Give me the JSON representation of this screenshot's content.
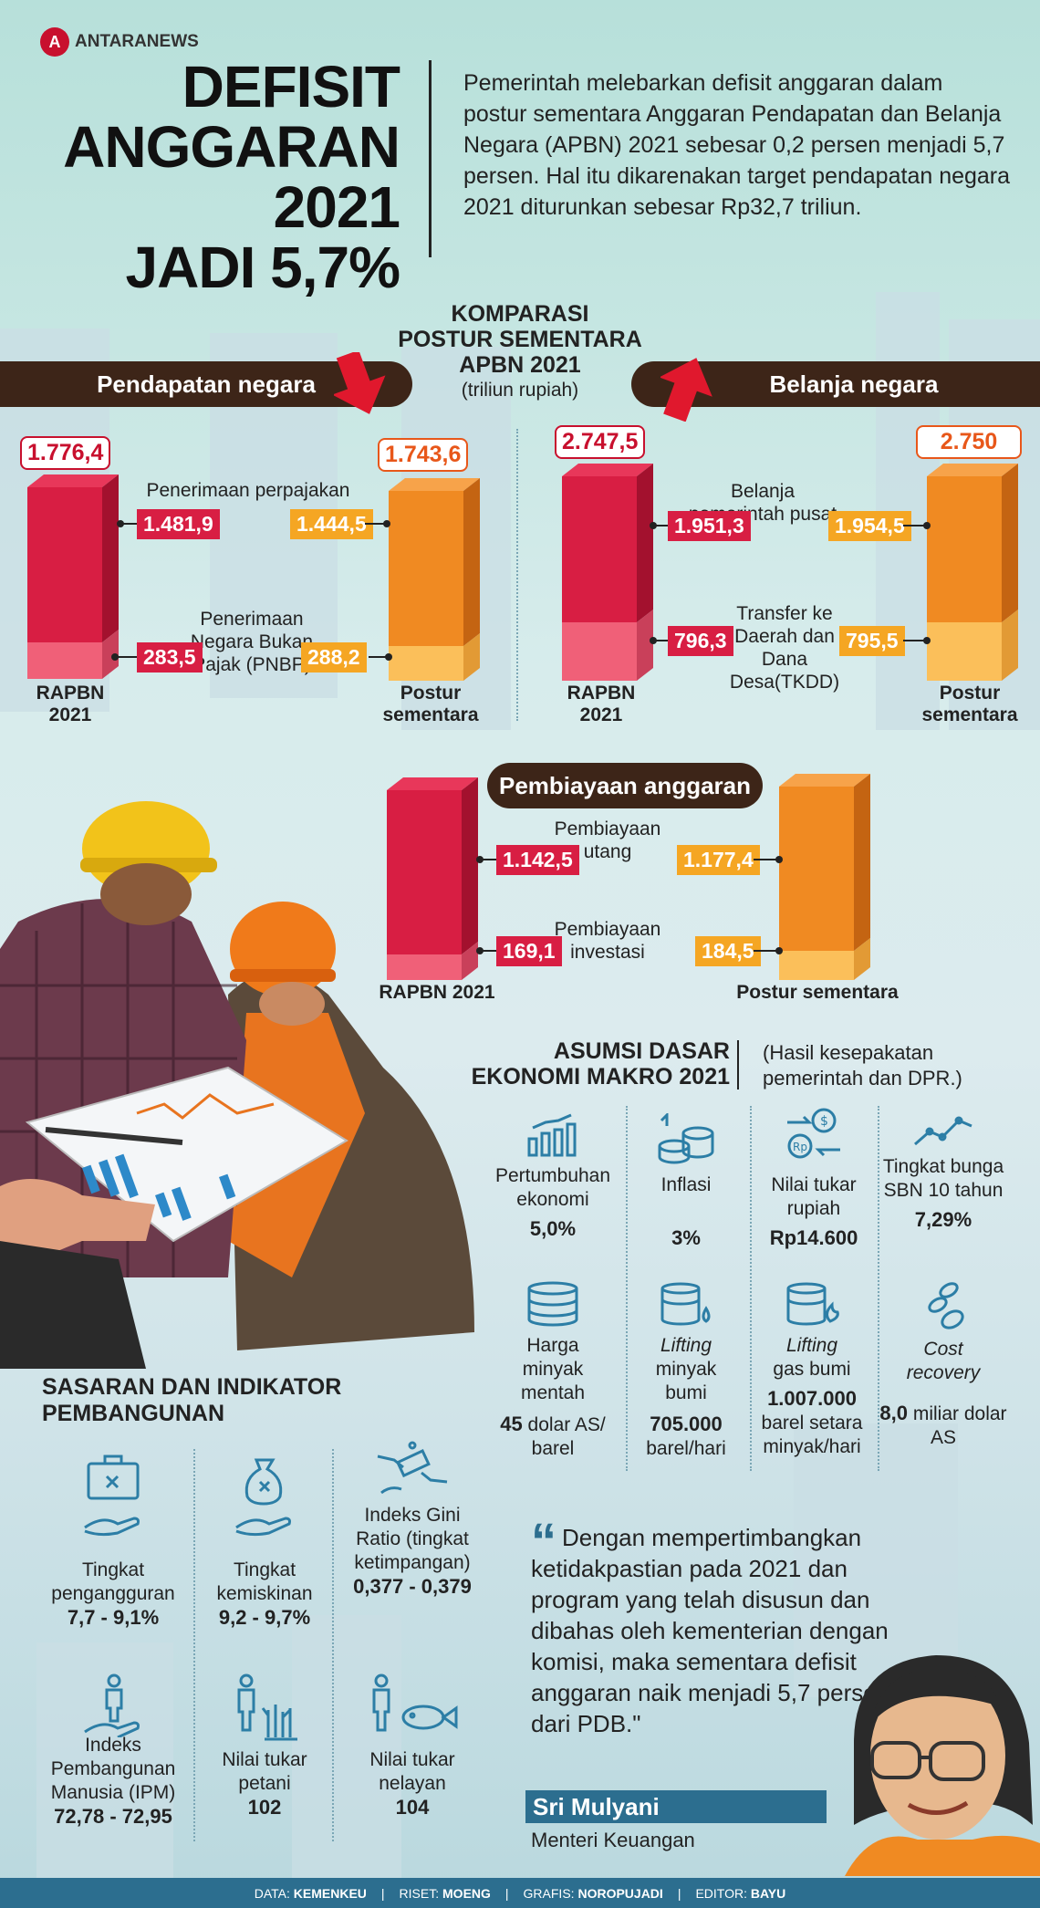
{
  "brand": {
    "logo_text": "ANTARANEWS",
    "logo_mark": "A"
  },
  "title": {
    "line1": "DEFISIT",
    "line2": "ANGGARAN 2021",
    "line3": "JADI 5,7%"
  },
  "intro": "Pemerintah melebarkan defisit anggaran dalam postur sementara Anggaran Pendapatan dan Belanja Negara (APBN) 2021 sebesar 0,2 persen menjadi 5,7 persen. Hal itu dikarenakan target pendapatan negara 2021 diturunkan sebesar Rp32,7 triliun.",
  "comparison": {
    "title_l1": "KOMPARASI",
    "title_l2": "POSTUR SEMENTARA",
    "title_l3": "APBN 2021",
    "unit": "(triliun rupiah)"
  },
  "pendapatan": {
    "header": "Pendapatan negara",
    "rapbn_total": "1.776,4",
    "postur_total": "1.743,6",
    "pajak_label": "Penerimaan perpajakan",
    "pajak_rapbn": "1.481,9",
    "pajak_postur": "1.444,5",
    "pnbp_label": "Penerimaan Negara Bukan Pajak (PNBP)",
    "pnbp_rapbn": "283,5",
    "pnbp_postur": "288,2",
    "cap_left": "RAPBN 2021",
    "cap_right": "Postur sementara"
  },
  "belanja": {
    "header": "Belanja negara",
    "rapbn_total": "2.747,5",
    "postur_total": "2.750",
    "pusat_label": "Belanja pemerintah pusat",
    "pusat_rapbn": "1.951,3",
    "pusat_postur": "1.954,5",
    "tkdd_label": "Transfer ke Daerah dan Dana Desa(TKDD)",
    "tkdd_rapbn": "796,3",
    "tkdd_postur": "795,5",
    "cap_left": "RAPBN 2021",
    "cap_right": "Postur sementara"
  },
  "pembiayaan": {
    "header": "Pembiayaan anggaran",
    "utang_label": "Pembiayaan utang",
    "utang_rapbn": "1.142,5",
    "utang_postur": "1.177,4",
    "investasi_label": "Pembiayaan investasi",
    "investasi_rapbn": "169,1",
    "investasi_postur": "184,5",
    "cap_left": "RAPBN 2021",
    "cap_right": "Postur sementara"
  },
  "macro": {
    "title_l1": "ASUMSI DASAR",
    "title_l2": "EKONOMI MAKRO 2021",
    "note_l1": "(Hasil kesepakatan",
    "note_l2": "pemerintah dan DPR.)",
    "items": [
      {
        "label": "Pertumbuhan ekonomi",
        "value": "5,0%",
        "icon": "growth-chart-icon"
      },
      {
        "label": "Inflasi",
        "value": "3%",
        "icon": "coins-icon"
      },
      {
        "label": "Nilai tukar rupiah",
        "value": "Rp14.600",
        "icon": "currency-exchange-icon"
      },
      {
        "label": "Tingkat bunga SBN 10 tahun",
        "value": "7,29%",
        "icon": "line-trend-icon"
      },
      {
        "label": "Harga minyak mentah",
        "value": "45",
        "value_suffix": "dolar AS/ barel",
        "icon": "oil-barrels-icon"
      },
      {
        "label_italic": "Lifting",
        "label": "minyak bumi",
        "value": "705.000",
        "value_suffix": "barel/hari",
        "icon": "oil-drop-icon"
      },
      {
        "label_italic": "Lifting",
        "label": "gas bumi",
        "value": "1.007.000",
        "value_suffix": "barel setara minyak/hari",
        "icon": "gas-flame-icon"
      },
      {
        "label_italic": "Cost recovery",
        "value": "8,0",
        "value_suffix": "miliar dolar AS",
        "icon": "coin-stack-icon"
      }
    ]
  },
  "sasaran": {
    "title_l1": "SASARAN DAN INDIKATOR",
    "title_l2": "PEMBANGUNAN",
    "items": [
      {
        "label": "Tingkat pengangguran",
        "value": "7,7 - 9,1%",
        "icon": "briefcase-hand-icon"
      },
      {
        "label": "Tingkat kemiskinan",
        "value": "9,2 - 9,7%",
        "icon": "money-bag-hand-icon"
      },
      {
        "label": "Indeks Gini Ratio (tingkat ketimpangan)",
        "value": "0,377 - 0,379",
        "icon": "hands-money-icon"
      },
      {
        "label": "Indeks Pembangunan Manusia (IPM)",
        "value": "72,78 - 72,95",
        "icon": "person-hand-icon"
      },
      {
        "label": "Nilai tukar petani",
        "value": "102",
        "icon": "farmer-plant-icon"
      },
      {
        "label": "Nilai tukar nelayan",
        "value": "104",
        "icon": "fisherman-fish-icon"
      }
    ]
  },
  "quote": {
    "text": "Dengan mempertimbangkan ketidakpastian pada 2021 dan program yang telah disusun dan dibahas oleh kementerian dengan komisi, maka sementara defisit anggaran naik menjadi 5,7 persen dari PDB.\"",
    "mark": "“",
    "speaker": "Sri Mulyani",
    "role": "Menteri Keuangan"
  },
  "footer": {
    "data_label": "DATA:",
    "data_value": "KEMENKEU",
    "riset_label": "RISET:",
    "riset_value": "MOENG",
    "grafis_label": "GRAFIS:",
    "grafis_value": "NOROPUJADI",
    "editor_label": "EDITOR:",
    "editor_value": "BAYU",
    "sep": "|"
  },
  "colors": {
    "red": "#d81e43",
    "orange": "#f5a623",
    "brown": "#3d2518",
    "blue": "#2c6e8f"
  }
}
